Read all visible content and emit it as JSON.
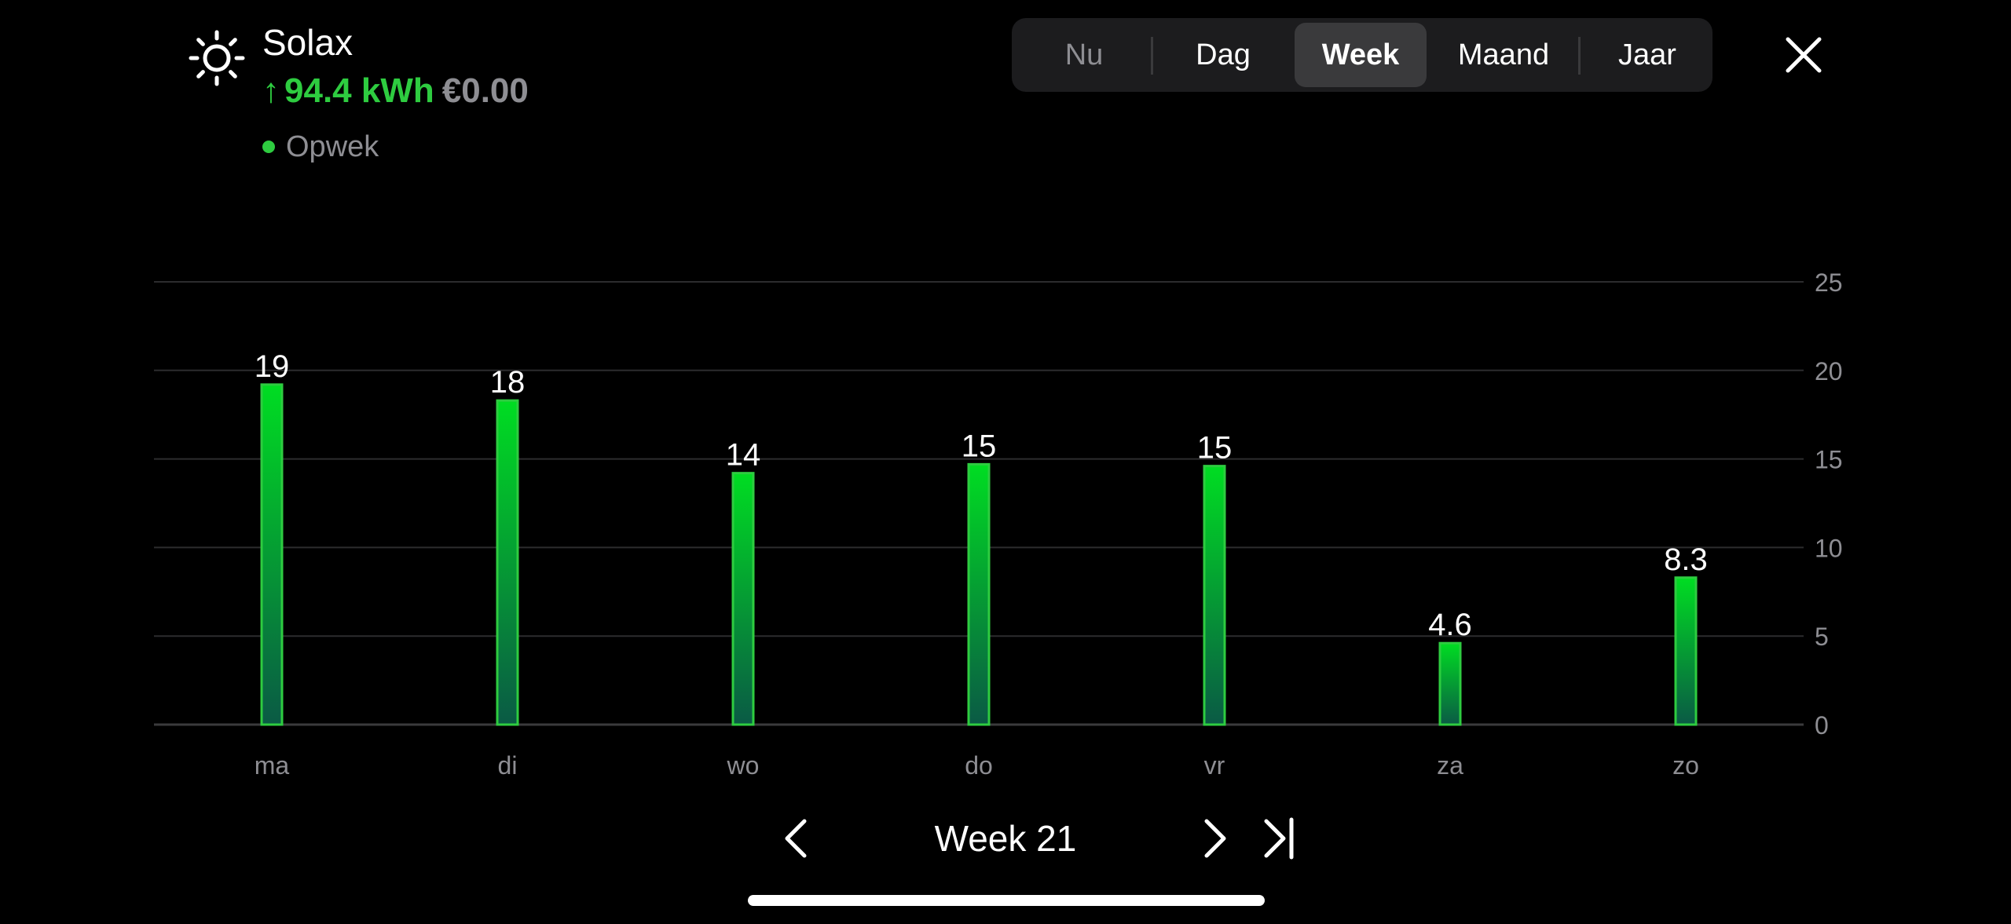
{
  "header": {
    "device_name": "Solax",
    "energy_arrow": "↑",
    "energy_value": "94.4 kWh",
    "energy_cost": "€0.00",
    "legend_label": "Opwek",
    "icon": "sun-icon"
  },
  "period_tabs": [
    {
      "label": "Nu",
      "state": "disabled"
    },
    {
      "label": "Dag",
      "state": "normal"
    },
    {
      "label": "Week",
      "state": "selected"
    },
    {
      "label": "Maand",
      "state": "normal"
    },
    {
      "label": "Jaar",
      "state": "normal"
    }
  ],
  "navigation": {
    "period_label": "Week 21",
    "prev_icon": "chevron-left-icon",
    "next_icon": "chevron-right-icon",
    "last_icon": "skip-to-end-icon",
    "close_icon": "close-icon"
  },
  "colors": {
    "accent_green": "#2ecc40",
    "bar_top": "#00dd22",
    "bar_bottom": "#0a5a45",
    "bar_border": "#2ecc40",
    "muted_text": "#8e8e93",
    "gridline": "#2c2c2e"
  },
  "chart_data": {
    "type": "bar",
    "categories": [
      "ma",
      "di",
      "wo",
      "do",
      "vr",
      "za",
      "zo"
    ],
    "values": [
      19.2,
      18.3,
      14.2,
      14.7,
      14.6,
      4.6,
      8.3
    ],
    "data_labels": [
      "19",
      "18",
      "14",
      "15",
      "15",
      "4.6",
      "8.3"
    ],
    "ylim": [
      0,
      25
    ],
    "yticks": [
      "0",
      "5",
      "10",
      "15",
      "20",
      "25"
    ],
    "y_axis_position": "right",
    "grid": true,
    "series": [
      {
        "name": "Opwek",
        "values": [
          19.2,
          18.3,
          14.2,
          14.7,
          14.6,
          4.6,
          8.3
        ]
      }
    ]
  }
}
